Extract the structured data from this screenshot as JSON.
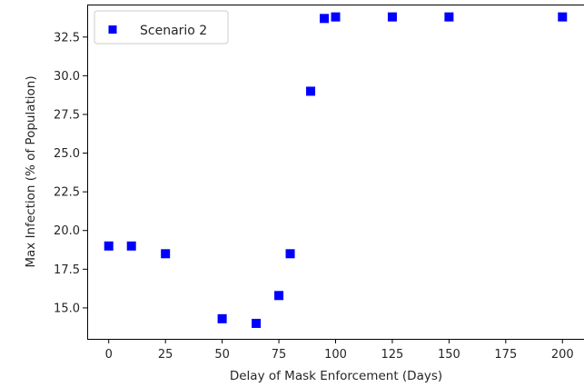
{
  "chart_data": {
    "type": "scatter",
    "title": "",
    "xlabel": "Delay of Mask Enforcement (Days)",
    "ylabel": "Max Infection (% of Population)",
    "xlim": [
      -9.5,
      209.5
    ],
    "ylim": [
      13.0,
      34.6
    ],
    "xticks": [
      0,
      25,
      50,
      75,
      100,
      125,
      150,
      175,
      200
    ],
    "yticks": [
      15.0,
      17.5,
      20.0,
      22.5,
      25.0,
      27.5,
      30.0,
      32.5
    ],
    "grid": false,
    "legend_position": "top-left",
    "series": [
      {
        "name": "Scenario 2",
        "color": "#0000ff",
        "marker": "square",
        "x": [
          0,
          10,
          25,
          50,
          65,
          75,
          80,
          89,
          95,
          100,
          125,
          150,
          200
        ],
        "y": [
          19.0,
          19.0,
          18.5,
          14.3,
          14.0,
          15.8,
          18.5,
          29.0,
          33.7,
          33.8,
          33.8,
          33.8,
          33.8
        ]
      }
    ]
  }
}
